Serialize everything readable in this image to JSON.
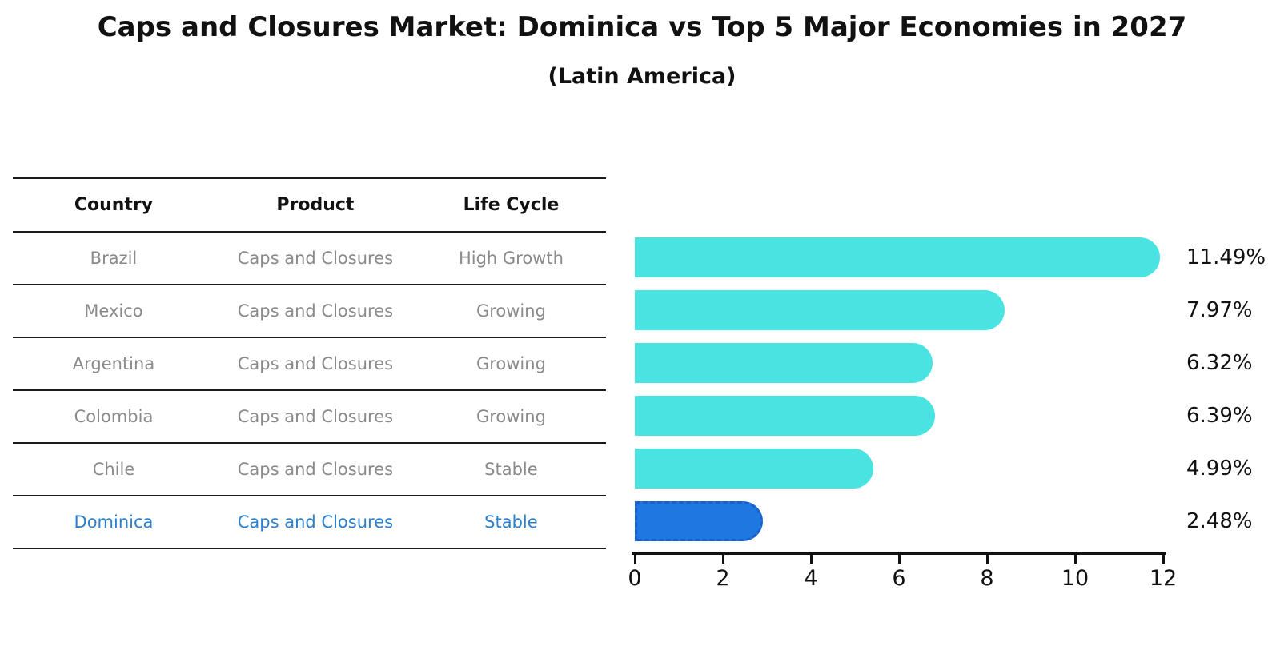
{
  "title": "Caps and Closures Market: Dominica vs Top 5 Major Economies in 2027",
  "subtitle": "(Latin America)",
  "table": {
    "headers": [
      "Country",
      "Product",
      "Life Cycle"
    ],
    "rows": [
      {
        "country": "Brazil",
        "product": "Caps and Closures",
        "life_cycle": "High Growth",
        "highlight": false
      },
      {
        "country": "Mexico",
        "product": "Caps and Closures",
        "life_cycle": "Growing",
        "highlight": false
      },
      {
        "country": "Argentina",
        "product": "Caps and Closures",
        "life_cycle": "Growing",
        "highlight": false
      },
      {
        "country": "Colombia",
        "product": "Caps and Closures",
        "life_cycle": "Growing",
        "highlight": false
      },
      {
        "country": "Chile",
        "product": "Caps and Closures",
        "life_cycle": "Stable",
        "highlight": false
      },
      {
        "country": "Dominica",
        "product": "Caps and Closures",
        "life_cycle": "Stable",
        "highlight": true
      }
    ]
  },
  "chart_data": {
    "type": "bar",
    "orientation": "horizontal",
    "title": "Caps and Closures Market: Dominica vs Top 5 Major Economies in 2027",
    "subtitle": "(Latin America)",
    "categories": [
      "Brazil",
      "Mexico",
      "Argentina",
      "Colombia",
      "Chile",
      "Dominica"
    ],
    "values": [
      11.49,
      7.97,
      6.32,
      6.39,
      4.99,
      2.48
    ],
    "value_labels": [
      "11.49%",
      "7.97%",
      "6.32%",
      "6.39%",
      "4.99%",
      "2.48%"
    ],
    "xlabel": "",
    "ylabel": "",
    "xlim": [
      0,
      12
    ],
    "x_ticks": [
      0,
      2,
      4,
      6,
      8,
      10,
      12
    ],
    "grid": false,
    "legend": null,
    "highlight_category": "Dominica"
  },
  "colors": {
    "bar_cyan": "#49e4e1",
    "bar_blue": "#1f78e0",
    "bar_blue_edge": "#1b5fce",
    "highlight_text": "#2b80ce",
    "row_text": "#8a8a8a",
    "axis": "#111111",
    "background": "#ffffff"
  }
}
